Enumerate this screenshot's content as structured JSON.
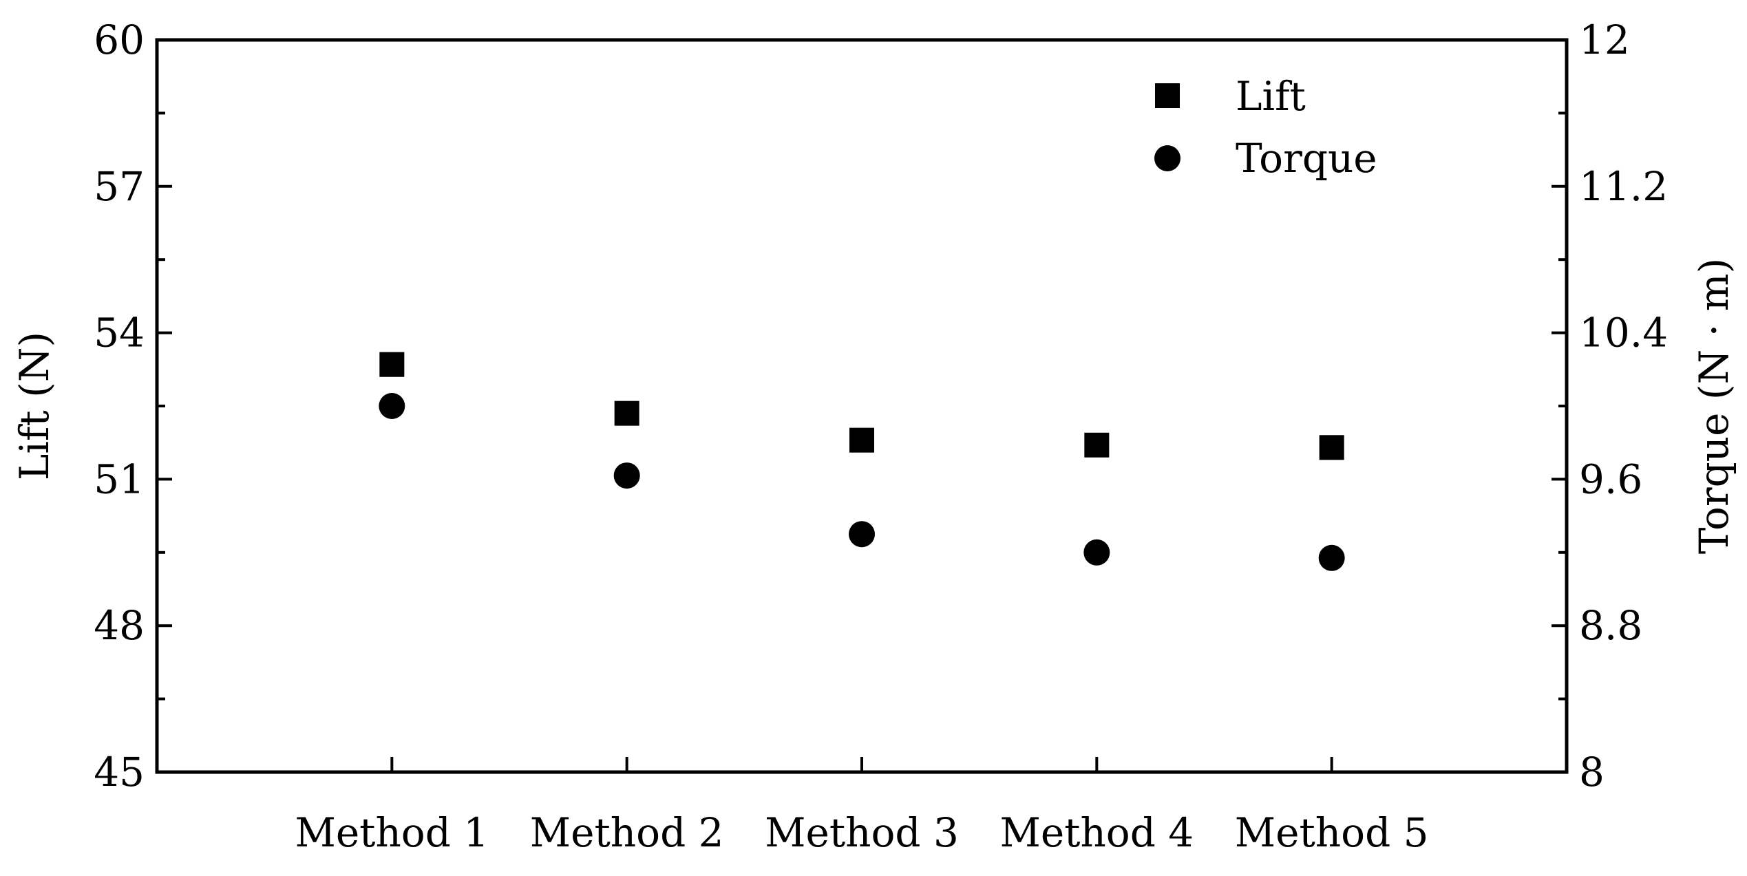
{
  "chart_data": {
    "type": "scatter",
    "categories": [
      "Method 1",
      "Method 2",
      "Method 3",
      "Method 4",
      "Method 5"
    ],
    "series": [
      {
        "name": "Lift",
        "axis": "left",
        "marker": "square",
        "values": [
          53.35,
          52.35,
          51.8,
          51.7,
          51.65
        ]
      },
      {
        "name": "Torque",
        "axis": "right",
        "marker": "circle",
        "values": [
          10.0,
          9.62,
          9.3,
          9.2,
          9.17
        ]
      }
    ],
    "ylabel": "Lift (N)",
    "y2label": "Torque (N · m)",
    "ylim": [
      45,
      60
    ],
    "y2lim": [
      8,
      12
    ],
    "yticks": [
      "45",
      "48",
      "51",
      "54",
      "57",
      "60"
    ],
    "y2ticks": [
      "8",
      "8.8",
      "9.6",
      "10.4",
      "11.2",
      "12"
    ],
    "grid": false,
    "legend_position": "top-right",
    "colors": {
      "marker": "#000000",
      "axis": "#000000"
    }
  }
}
